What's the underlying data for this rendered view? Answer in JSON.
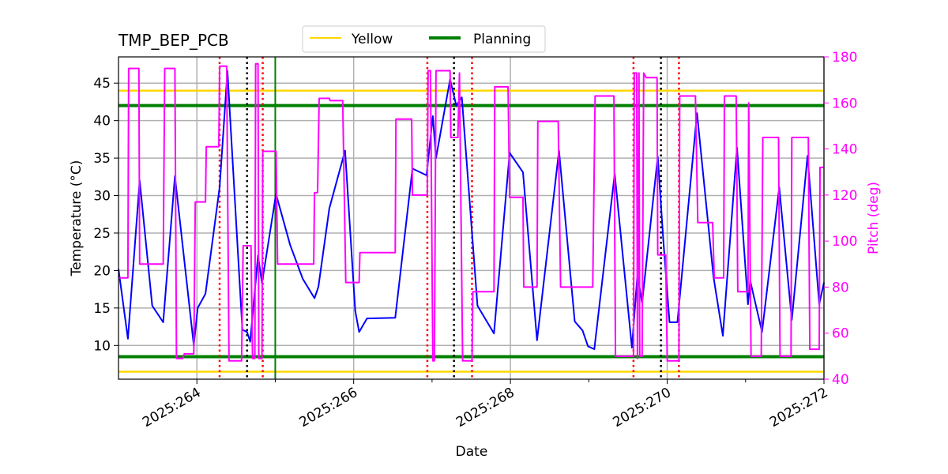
{
  "chart_data": {
    "type": "line",
    "title": "TMP_BEP_PCB",
    "xlabel": "Date",
    "ylabel": "Temperature ($^\\circ$C)",
    "ylabel_display": "Temperature (°C)",
    "y2label": "Pitch (deg)",
    "xlim": [
      263.0,
      272.0
    ],
    "ylim": [
      5.5,
      48.5
    ],
    "y2lim": [
      40,
      180
    ],
    "grid": true,
    "x_ticks": [
      264,
      266,
      268,
      270,
      272
    ],
    "x_tick_labels": [
      "2025:264",
      "2025:266",
      "2025:268",
      "2025:270",
      "2025:272"
    ],
    "x_minor_ticks": [
      265,
      267,
      269,
      271
    ],
    "y_ticks": [
      10,
      15,
      20,
      25,
      30,
      35,
      40,
      45
    ],
    "y2_ticks": [
      40,
      60,
      80,
      100,
      120,
      140,
      160,
      180
    ],
    "legend": {
      "placement": "top-center, above axes",
      "entries": [
        {
          "label": "Yellow",
          "color": "#ffd700"
        },
        {
          "label": "Planning",
          "color": "#008000"
        }
      ]
    },
    "hlines": [
      {
        "name": "Yellow",
        "values": [
          44.0,
          6.5
        ],
        "color": "#ffd700"
      },
      {
        "name": "Planning",
        "values": [
          42.0,
          8.5
        ],
        "color": "#008000"
      }
    ],
    "vline_planning": {
      "x": 265.0,
      "color": "#008000"
    },
    "vlines_red_dotted": [
      264.29,
      264.84,
      266.94,
      267.51,
      269.57,
      270.15
    ],
    "vlines_black_dotted": [
      264.64,
      267.28,
      269.92
    ],
    "colors": {
      "temperature": "#0000ff",
      "pitch": "#ff00ff",
      "grid": "#b0b0b0",
      "red": "#ff0000",
      "black": "#000000"
    },
    "series": [
      {
        "name": "Temperature",
        "axis": "left",
        "color": "#0000ff",
        "points": [
          [
            263.0,
            20.2
          ],
          [
            263.12,
            10.9
          ],
          [
            263.27,
            32.0
          ],
          [
            263.43,
            15.3
          ],
          [
            263.57,
            13.1
          ],
          [
            263.72,
            32.6
          ],
          [
            263.96,
            10.0
          ],
          [
            264.01,
            15.0
          ],
          [
            264.11,
            16.9
          ],
          [
            264.29,
            31.1
          ],
          [
            264.39,
            46.6
          ],
          [
            264.58,
            12.1
          ],
          [
            264.64,
            11.8
          ],
          [
            264.68,
            10.5
          ],
          [
            264.78,
            22.0
          ],
          [
            264.83,
            18.3
          ],
          [
            265.01,
            30.2
          ],
          [
            265.19,
            23.4
          ],
          [
            265.35,
            18.9
          ],
          [
            265.5,
            16.3
          ],
          [
            265.55,
            17.8
          ],
          [
            265.69,
            28.3
          ],
          [
            265.89,
            36.0
          ],
          [
            266.02,
            14.6
          ],
          [
            266.07,
            11.8
          ],
          [
            266.17,
            13.6
          ],
          [
            266.53,
            13.7
          ],
          [
            266.75,
            33.6
          ],
          [
            266.93,
            32.7
          ],
          [
            267.01,
            40.6
          ],
          [
            267.05,
            35.0
          ],
          [
            267.23,
            45.5
          ],
          [
            267.31,
            42.0
          ],
          [
            267.38,
            43.1
          ],
          [
            267.58,
            15.3
          ],
          [
            267.79,
            11.6
          ],
          [
            267.99,
            35.7
          ],
          [
            268.16,
            33.1
          ],
          [
            268.34,
            10.7
          ],
          [
            268.62,
            36.0
          ],
          [
            268.82,
            13.2
          ],
          [
            268.92,
            12.0
          ],
          [
            268.99,
            9.9
          ],
          [
            269.07,
            9.5
          ],
          [
            269.33,
            32.9
          ],
          [
            269.55,
            9.7
          ],
          [
            269.62,
            19.5
          ],
          [
            269.68,
            15.7
          ],
          [
            269.88,
            35.2
          ],
          [
            269.95,
            24.1
          ],
          [
            270.03,
            13.1
          ],
          [
            270.13,
            13.1
          ],
          [
            270.38,
            41.0
          ],
          [
            270.59,
            19.2
          ],
          [
            270.71,
            11.3
          ],
          [
            270.89,
            36.4
          ],
          [
            271.03,
            15.5
          ],
          [
            271.06,
            18.6
          ],
          [
            271.21,
            11.8
          ],
          [
            271.43,
            31.1
          ],
          [
            271.59,
            13.4
          ],
          [
            271.79,
            35.3
          ],
          [
            271.94,
            15.5
          ],
          [
            272.0,
            18.4
          ]
        ]
      },
      {
        "name": "Pitch",
        "axis": "right",
        "color": "#ff00ff",
        "points": [
          [
            263.0,
            84
          ],
          [
            263.12,
            84
          ],
          [
            263.13,
            175
          ],
          [
            263.26,
            175
          ],
          [
            263.27,
            90
          ],
          [
            263.57,
            90
          ],
          [
            263.59,
            175
          ],
          [
            263.72,
            175
          ],
          [
            263.74,
            49
          ],
          [
            263.82,
            49
          ],
          [
            263.84,
            51
          ],
          [
            263.96,
            51
          ],
          [
            263.98,
            117
          ],
          [
            264.11,
            117
          ],
          [
            264.12,
            141
          ],
          [
            264.28,
            141
          ],
          [
            264.29,
            176
          ],
          [
            264.38,
            176
          ],
          [
            264.41,
            48
          ],
          [
            264.57,
            48
          ],
          [
            264.59,
            98
          ],
          [
            264.69,
            98
          ],
          [
            264.71,
            49
          ],
          [
            264.74,
            49
          ],
          [
            264.75,
            177
          ],
          [
            264.78,
            177
          ],
          [
            264.79,
            49
          ],
          [
            264.83,
            49
          ],
          [
            264.84,
            139
          ],
          [
            265.01,
            139
          ],
          [
            265.03,
            90
          ],
          [
            265.49,
            90
          ],
          [
            265.5,
            121
          ],
          [
            265.54,
            121
          ],
          [
            265.56,
            162
          ],
          [
            265.69,
            162
          ],
          [
            265.7,
            161
          ],
          [
            265.86,
            161
          ],
          [
            265.9,
            82
          ],
          [
            266.07,
            82
          ],
          [
            266.08,
            95
          ],
          [
            266.53,
            95
          ],
          [
            266.54,
            153
          ],
          [
            266.74,
            153
          ],
          [
            266.75,
            120
          ],
          [
            266.94,
            120
          ],
          [
            266.95,
            174
          ],
          [
            266.98,
            174
          ],
          [
            267.01,
            48
          ],
          [
            267.03,
            48
          ],
          [
            267.05,
            174
          ],
          [
            267.23,
            174
          ],
          [
            267.24,
            145
          ],
          [
            267.33,
            145
          ],
          [
            267.35,
            173
          ],
          [
            267.39,
            48
          ],
          [
            267.51,
            48
          ],
          [
            267.52,
            78
          ],
          [
            267.79,
            78
          ],
          [
            267.8,
            167
          ],
          [
            267.97,
            167
          ],
          [
            267.99,
            119
          ],
          [
            268.16,
            119
          ],
          [
            268.17,
            80
          ],
          [
            268.34,
            80
          ],
          [
            268.35,
            152
          ],
          [
            268.61,
            152
          ],
          [
            268.64,
            80
          ],
          [
            269.05,
            80
          ],
          [
            269.08,
            163
          ],
          [
            269.32,
            163
          ],
          [
            269.34,
            50
          ],
          [
            269.57,
            50
          ],
          [
            269.58,
            173
          ],
          [
            269.61,
            173
          ],
          [
            269.62,
            49
          ],
          [
            269.64,
            173
          ],
          [
            269.65,
            50
          ],
          [
            269.68,
            50
          ],
          [
            269.7,
            173
          ],
          [
            269.73,
            171
          ],
          [
            269.87,
            171
          ],
          [
            269.88,
            94
          ],
          [
            269.98,
            94
          ],
          [
            270.0,
            48
          ],
          [
            270.15,
            48
          ],
          [
            270.16,
            163
          ],
          [
            270.36,
            163
          ],
          [
            270.39,
            108
          ],
          [
            270.58,
            108
          ],
          [
            270.6,
            84
          ],
          [
            270.72,
            84
          ],
          [
            270.73,
            163
          ],
          [
            270.88,
            163
          ],
          [
            270.9,
            78
          ],
          [
            271.03,
            78
          ],
          [
            271.04,
            160
          ],
          [
            271.07,
            50
          ],
          [
            271.2,
            50
          ],
          [
            271.22,
            145
          ],
          [
            271.42,
            145
          ],
          [
            271.44,
            50
          ],
          [
            271.58,
            50
          ],
          [
            271.59,
            145
          ],
          [
            271.8,
            145
          ],
          [
            271.82,
            53
          ],
          [
            271.94,
            53
          ],
          [
            271.95,
            132
          ],
          [
            272.0,
            132
          ]
        ]
      }
    ]
  }
}
